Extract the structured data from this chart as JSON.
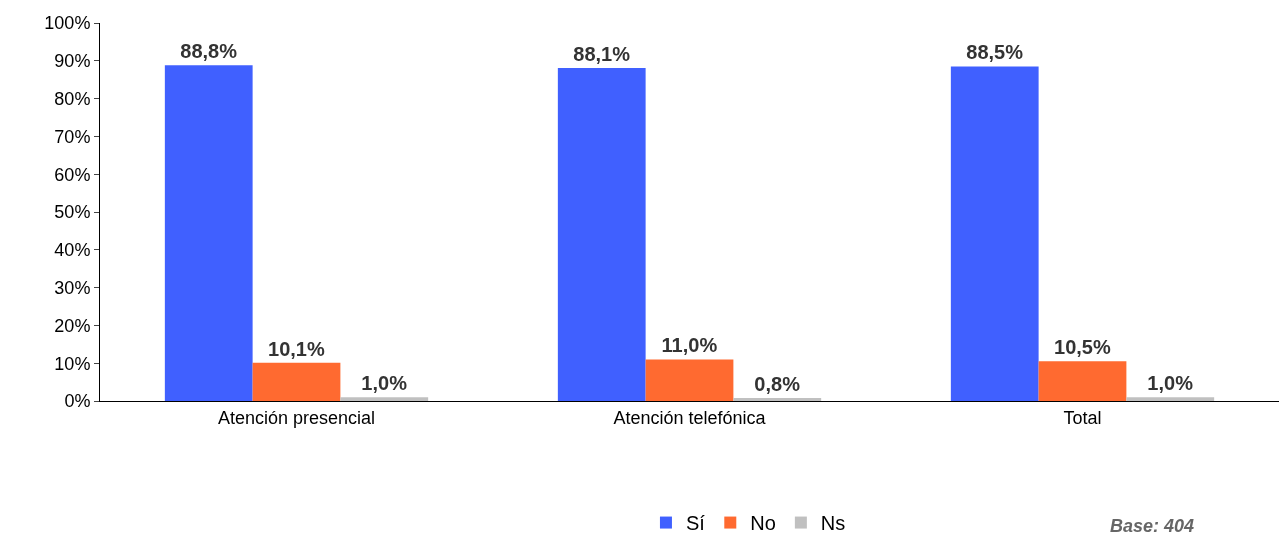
{
  "chart_data": {
    "type": "bar",
    "categories": [
      "Atención presencial",
      "Atención telefónica",
      "Total"
    ],
    "series": [
      {
        "name": "Sí",
        "color": "#4060ff",
        "values": [
          88.8,
          88.1,
          88.5
        ],
        "value_labels": [
          "88,8%",
          "88,1%",
          "88,5%"
        ]
      },
      {
        "name": "No",
        "color": "#ff6a30",
        "values": [
          10.1,
          11.0,
          10.5
        ],
        "value_labels": [
          "10,1%",
          "11,0%",
          "10,5%"
        ]
      },
      {
        "name": "Ns",
        "color": "#c0c0c0",
        "values": [
          1.0,
          0.8,
          1.0
        ],
        "value_labels": [
          "1,0%",
          "0,8%",
          "1,0%"
        ]
      }
    ],
    "ylim": [
      0,
      100
    ],
    "yticks": [
      {
        "value": 0,
        "label": "0%"
      },
      {
        "value": 10,
        "label": "10%"
      },
      {
        "value": 20,
        "label": "20%"
      },
      {
        "value": 30,
        "label": "30%"
      },
      {
        "value": 40,
        "label": "40%"
      },
      {
        "value": 50,
        "label": "50%"
      },
      {
        "value": 60,
        "label": "60%"
      },
      {
        "value": 70,
        "label": "70%"
      },
      {
        "value": 80,
        "label": "80%"
      },
      {
        "value": 90,
        "label": "90%"
      },
      {
        "value": 100,
        "label": "100%"
      }
    ],
    "legend": "bottom",
    "annotations": [
      "Base: 404"
    ]
  }
}
